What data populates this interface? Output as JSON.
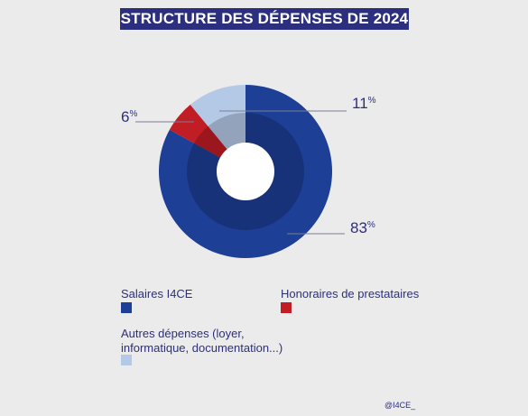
{
  "title": "STRUCTURE DES DÉPENSES DE 2024",
  "credit": "@I4CE_",
  "colors": {
    "title_bg": "#2c2f7e",
    "text": "#2c2f7e",
    "salaires": "#1e3f96",
    "honoraires": "#c01d24",
    "autres": "#b4c9e6"
  },
  "chart_data": {
    "type": "pie",
    "title": "STRUCTURE DES DÉPENSES DE 2024",
    "series": [
      {
        "name": "Salaires I4CE",
        "value": 83,
        "label_num": "83",
        "label_unit": "%",
        "color": "#1e3f96"
      },
      {
        "name": "Honoraires de prestataires",
        "value": 6,
        "label_num": "6",
        "label_unit": "%",
        "color": "#c01d24"
      },
      {
        "name": "Autres dépenses (loyer, informatique, documentation...)",
        "value": 11,
        "label_num": "11",
        "label_unit": "%",
        "color": "#b4c9e6"
      }
    ]
  },
  "legend": {
    "salaires": "Salaires I4CE",
    "honoraires": "Honoraires de prestataires",
    "autres_line1": "Autres dépenses (loyer,",
    "autres_line2": "informatique, documentation...)"
  }
}
